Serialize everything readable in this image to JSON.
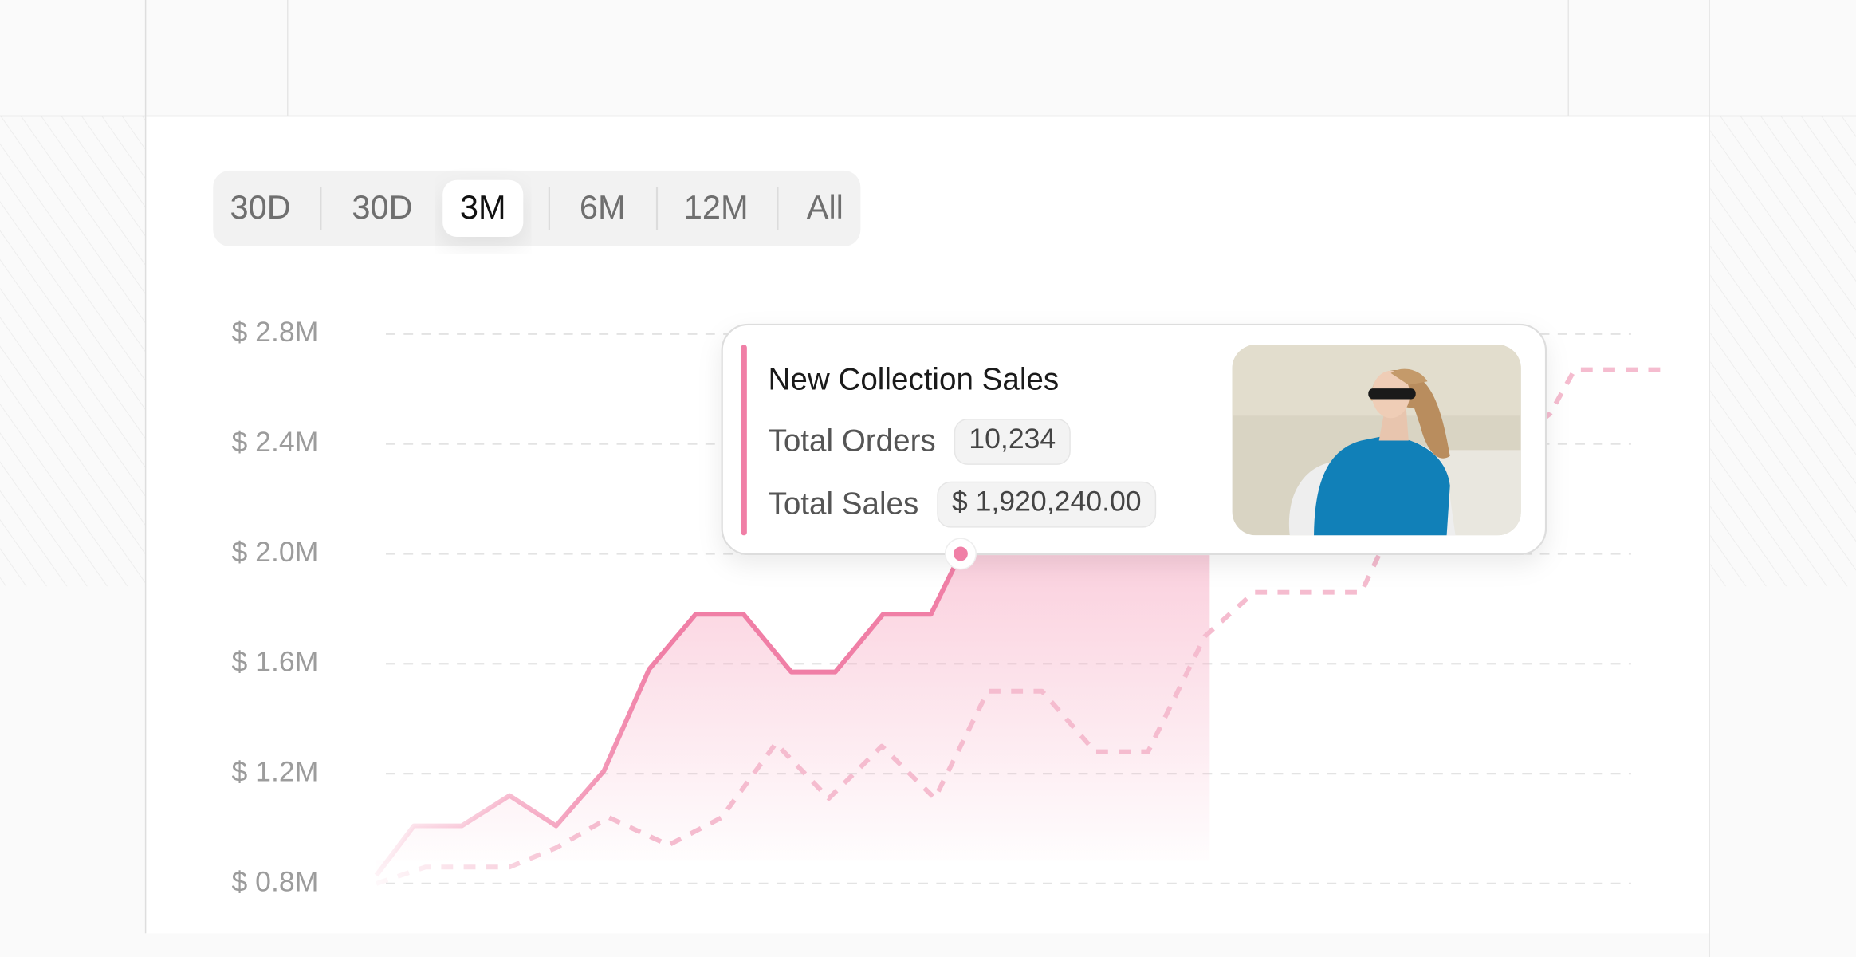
{
  "tabs": [
    "30D",
    "30D",
    "3M",
    "6M",
    "12M",
    "All"
  ],
  "active_tab": 2,
  "chart_data": {
    "type": "line",
    "xlim": [
      0,
      100
    ],
    "ylim": [
      800000,
      2800000
    ],
    "yticks": [
      {
        "value": 2800000,
        "label": "$ 2.8M"
      },
      {
        "value": 2400000,
        "label": "$ 2.4M"
      },
      {
        "value": 2000000,
        "label": "$ 2.0M"
      },
      {
        "value": 1600000,
        "label": "$ 1.6M"
      },
      {
        "value": 1200000,
        "label": "$ 1.2M"
      },
      {
        "value": 800000,
        "label": "$ 0.8M"
      }
    ],
    "grid": true,
    "series": [
      {
        "name": "New Collection Sales",
        "color": "#f07fa6",
        "style": "solid",
        "x": [
          0,
          2.9,
          6.6,
          10.3,
          13.9,
          17.6,
          21.1,
          24.7,
          28.4,
          32.1,
          35.5,
          39.2,
          42.9,
          45.2
        ],
        "values": [
          830000,
          1010000,
          1010000,
          1120000,
          1010000,
          1210000,
          1580000,
          1780000,
          1780000,
          1570000,
          1570000,
          1780000,
          1780000,
          2000000
        ]
      },
      {
        "color": "#f5bccf",
        "style": "dashed",
        "x": [
          0,
          3.8,
          10.3,
          13.9,
          18.0,
          22.6,
          26.7,
          30.9,
          35.0,
          39.1,
          43.2,
          47.3,
          51.5,
          55.6,
          59.7,
          64.1,
          67.9,
          76.2,
          78.0,
          90.8,
          92.7,
          100
        ],
        "values": [
          800000,
          860000,
          860000,
          930000,
          1040000,
          940000,
          1040000,
          1310000,
          1110000,
          1300000,
          1110000,
          1500000,
          1500000,
          1280000,
          1280000,
          1700000,
          1860000,
          1860000,
          2040000,
          2510000,
          2670000,
          2670000
        ]
      }
    ],
    "tooltip": {
      "rows": [
        {
          "label": "Total Orders",
          "value": "10,234"
        },
        {
          "label": "Total Sales",
          "value": "$ 1,920,240.00"
        }
      ]
    }
  }
}
